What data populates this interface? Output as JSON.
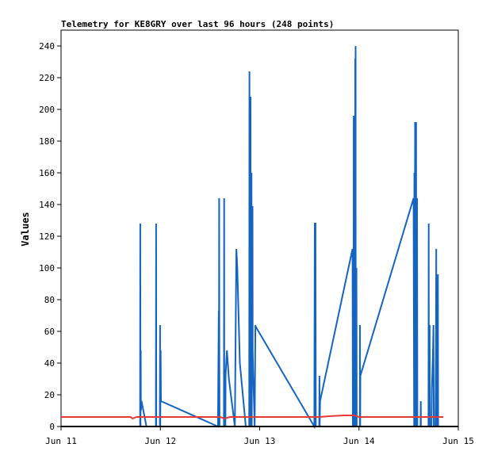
{
  "chart_data": {
    "type": "line",
    "title": "Telemetry for KE8GRY over last 96 hours (248 points)",
    "xlabel": "",
    "ylabel": "Values",
    "x_tick_labels": [
      "Jun 11",
      "Jun 12",
      "Jun 13",
      "Jun 14",
      "Jun 15"
    ],
    "x_tick_days": [
      11,
      12,
      13,
      14,
      15
    ],
    "xlim": [
      11,
      15
    ],
    "ylim": [
      0,
      250
    ],
    "y_ticks": [
      0,
      20,
      40,
      60,
      80,
      100,
      120,
      140,
      160,
      180,
      200,
      220,
      240
    ],
    "grid": false,
    "legend": "none",
    "series": [
      {
        "color": "#1565c0",
        "points": [
          [
            11.796,
            0
          ],
          [
            11.798,
            128
          ],
          [
            11.8,
            0
          ],
          [
            11.802,
            48
          ],
          [
            11.804,
            10
          ],
          [
            11.81,
            16
          ],
          [
            11.86,
            0
          ],
          [
            11.955,
            0
          ],
          [
            11.957,
            128
          ],
          [
            11.959,
            0
          ],
          [
            11.995,
            0
          ],
          [
            11.997,
            64
          ],
          [
            11.999,
            0
          ],
          [
            12.003,
            48
          ],
          [
            12.006,
            16
          ],
          [
            12.58,
            0
          ],
          [
            12.588,
            73
          ],
          [
            12.59,
            0
          ],
          [
            12.592,
            144
          ],
          [
            12.594,
            56
          ],
          [
            12.596,
            0
          ],
          [
            12.64,
            0
          ],
          [
            12.642,
            144
          ],
          [
            12.644,
            0
          ],
          [
            12.655,
            0
          ],
          [
            12.657,
            32
          ],
          [
            12.67,
            48
          ],
          [
            12.69,
            30
          ],
          [
            12.75,
            0
          ],
          [
            12.765,
            112
          ],
          [
            12.775,
            100
          ],
          [
            12.8,
            40
          ],
          [
            12.86,
            0
          ],
          [
            12.895,
            0
          ],
          [
            12.897,
            224
          ],
          [
            12.9,
            0
          ],
          [
            12.908,
            208
          ],
          [
            12.91,
            0
          ],
          [
            12.918,
            160
          ],
          [
            12.92,
            0
          ],
          [
            12.928,
            139
          ],
          [
            12.93,
            48
          ],
          [
            12.935,
            32
          ],
          [
            12.95,
            0
          ],
          [
            12.957,
            64
          ],
          [
            12.96,
            63
          ],
          [
            13.55,
            0
          ],
          [
            13.555,
            128
          ],
          [
            13.562,
            128
          ],
          [
            13.565,
            0
          ],
          [
            13.6,
            0
          ],
          [
            13.602,
            32
          ],
          [
            13.604,
            0
          ],
          [
            13.608,
            16
          ],
          [
            13.935,
            112
          ],
          [
            13.938,
            0
          ],
          [
            13.945,
            0
          ],
          [
            13.947,
            196
          ],
          [
            13.95,
            0
          ],
          [
            13.96,
            0
          ],
          [
            13.962,
            232
          ],
          [
            13.964,
            0
          ],
          [
            13.966,
            240
          ],
          [
            13.968,
            0
          ],
          [
            13.975,
            100
          ],
          [
            13.977,
            0
          ],
          [
            14.008,
            0
          ],
          [
            14.01,
            64
          ],
          [
            14.012,
            0
          ],
          [
            14.014,
            32
          ],
          [
            14.55,
            144
          ],
          [
            14.555,
            0
          ],
          [
            14.558,
            160
          ],
          [
            14.56,
            0
          ],
          [
            14.565,
            192
          ],
          [
            14.567,
            0
          ],
          [
            14.575,
            192
          ],
          [
            14.577,
            0
          ],
          [
            14.585,
            144
          ],
          [
            14.588,
            0
          ],
          [
            14.62,
            0
          ],
          [
            14.622,
            16
          ],
          [
            14.624,
            0
          ],
          [
            14.7,
            0
          ],
          [
            14.702,
            128
          ],
          [
            14.704,
            0
          ],
          [
            14.71,
            0
          ],
          [
            14.712,
            64
          ],
          [
            14.714,
            0
          ],
          [
            14.73,
            0
          ],
          [
            14.734,
            24
          ],
          [
            14.745,
            48
          ],
          [
            14.75,
            64
          ],
          [
            14.753,
            0
          ],
          [
            14.77,
            0
          ],
          [
            14.775,
            48
          ],
          [
            14.778,
            112
          ],
          [
            14.78,
            0
          ],
          [
            14.79,
            0
          ],
          [
            14.795,
            96
          ],
          [
            14.797,
            0
          ]
        ]
      },
      {
        "color": "#e53935",
        "points": [
          [
            11,
            6
          ],
          [
            11.7,
            6
          ],
          [
            11.72,
            5
          ],
          [
            11.76,
            6
          ],
          [
            12.0,
            6
          ],
          [
            12.6,
            6
          ],
          [
            12.65,
            5
          ],
          [
            12.7,
            6
          ],
          [
            13.0,
            6
          ],
          [
            13.5,
            6
          ],
          [
            13.6,
            6
          ],
          [
            13.7,
            6.5
          ],
          [
            13.85,
            7
          ],
          [
            13.95,
            7
          ],
          [
            14.0,
            6
          ],
          [
            14.4,
            6
          ],
          [
            14.6,
            6
          ],
          [
            14.8,
            6
          ],
          [
            14.85,
            6
          ]
        ]
      }
    ]
  }
}
